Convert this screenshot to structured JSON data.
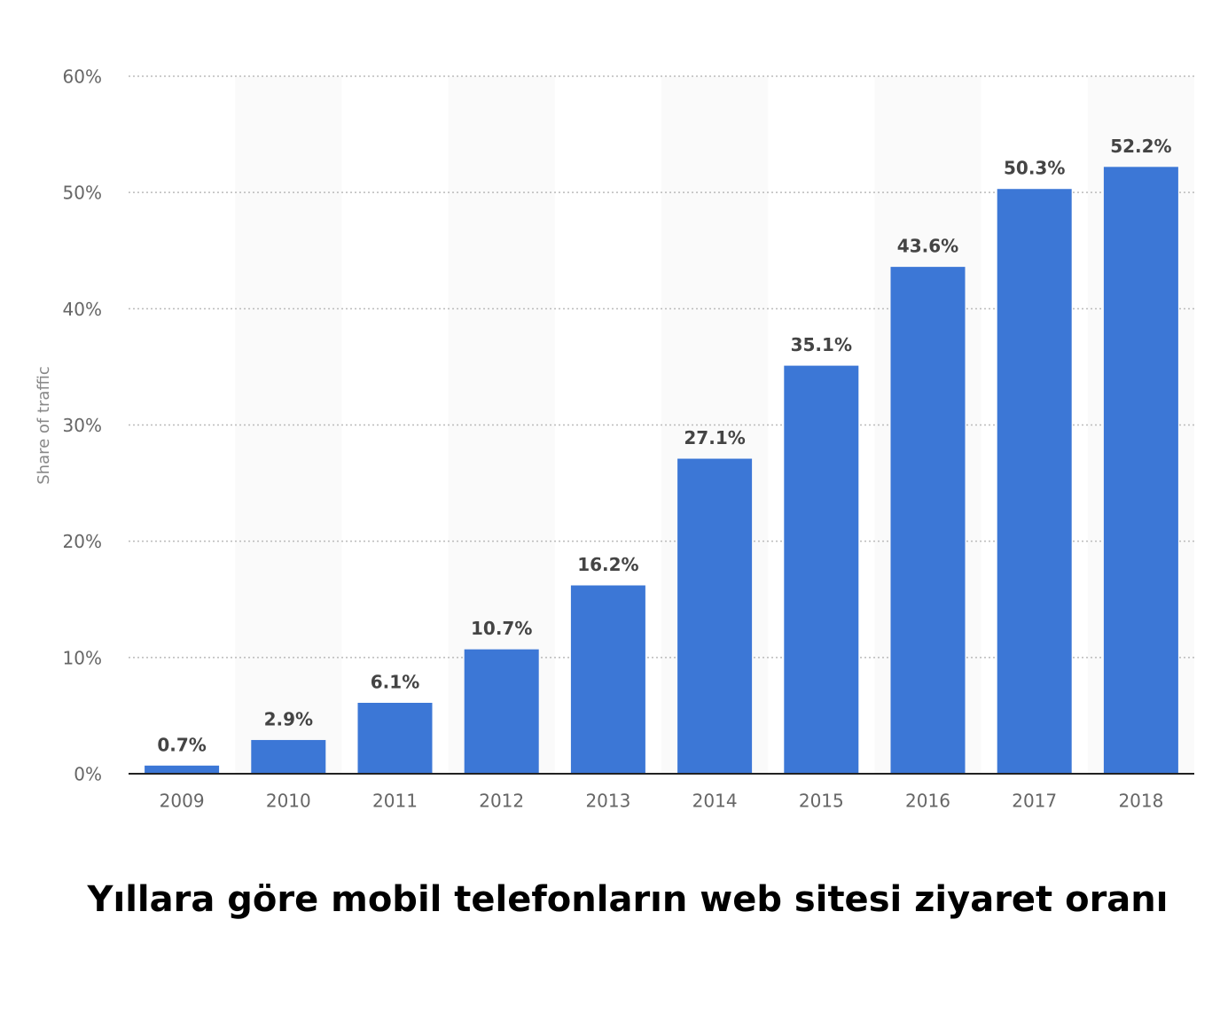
{
  "chart_data": {
    "type": "bar",
    "title": "Yıllara göre mobil telefonların web sitesi ziyaret oranı",
    "y_label": "Share of traffic",
    "categories": [
      "2009",
      "2010",
      "2011",
      "2012",
      "2013",
      "2014",
      "2015",
      "2016",
      "2017",
      "2018"
    ],
    "values": [
      0.7,
      2.9,
      6.1,
      10.7,
      16.2,
      27.1,
      35.1,
      43.6,
      50.3,
      52.2
    ],
    "value_labels": [
      "0.7%",
      "2.9%",
      "6.1%",
      "10.7%",
      "16.2%",
      "27.1%",
      "35.1%",
      "43.6%",
      "50.3%",
      "52.2%"
    ],
    "color": "#3c77d6",
    "ylim": [
      0,
      60
    ],
    "yticks": [
      {
        "value": 0,
        "label": "0%"
      },
      {
        "value": 10,
        "label": "10%"
      },
      {
        "value": 20,
        "label": "20%"
      },
      {
        "value": 30,
        "label": "30%"
      },
      {
        "value": 40,
        "label": "40%"
      },
      {
        "value": 50,
        "label": "50%"
      },
      {
        "value": 60,
        "label": "60%"
      }
    ],
    "grid": true
  }
}
